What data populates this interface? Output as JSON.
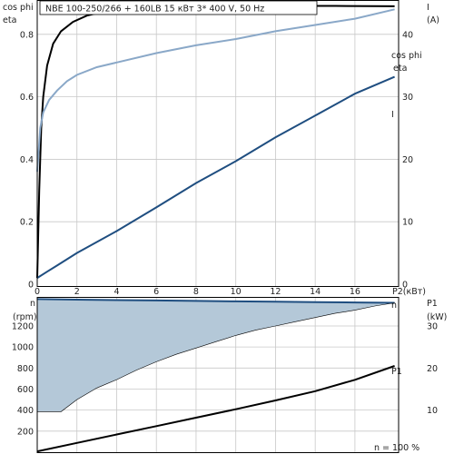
{
  "title": "NBE 100-250/266 + 160LB    15 кВт   3* 400 V, 50 Hz",
  "chart_data": [
    {
      "type": "line",
      "name": "top-panel",
      "xlabel": "P2(кВт)",
      "x_ticks": [
        0,
        2,
        4,
        6,
        8,
        10,
        12,
        14,
        16
      ],
      "xlim": [
        0,
        18.2
      ],
      "left_axis": {
        "labels": [
          "cos phi",
          "eta"
        ],
        "ticks": [
          0,
          0.2,
          0.4,
          0.6,
          0.8
        ],
        "ylim": [
          0,
          0.91
        ]
      },
      "right_axis": {
        "labels": [
          "I",
          "(A)"
        ],
        "ticks": [
          0,
          10,
          20,
          30,
          40
        ],
        "ylim": [
          0,
          45.5
        ]
      },
      "series": [
        {
          "name": "eta",
          "axis": "left",
          "color": "#000000",
          "x": [
            0,
            0.1,
            0.2,
            0.3,
            0.5,
            0.8,
            1.2,
            1.8,
            2.5,
            3.5,
            5,
            7,
            9,
            12,
            15,
            18
          ],
          "y": [
            0.02,
            0.3,
            0.5,
            0.6,
            0.7,
            0.77,
            0.81,
            0.84,
            0.86,
            0.875,
            0.885,
            0.889,
            0.89,
            0.891,
            0.891,
            0.89
          ]
        },
        {
          "name": "cos phi",
          "axis": "left",
          "color": "#8aa8c8",
          "x": [
            0,
            0.15,
            0.3,
            0.6,
            1,
            1.5,
            2,
            3,
            4,
            6,
            8,
            10,
            12,
            14,
            16,
            18
          ],
          "y": [
            0.36,
            0.5,
            0.55,
            0.59,
            0.62,
            0.65,
            0.67,
            0.695,
            0.71,
            0.74,
            0.765,
            0.785,
            0.81,
            0.83,
            0.85,
            0.88
          ]
        },
        {
          "name": "I",
          "axis": "right",
          "color": "#1f4e80",
          "x": [
            0,
            0.5,
            1,
            2,
            4,
            6,
            8,
            10,
            12,
            14,
            16,
            18
          ],
          "y": [
            1,
            2,
            3,
            5,
            8.5,
            12.3,
            16.2,
            19.7,
            23.5,
            27,
            30.5,
            33.2
          ]
        }
      ]
    },
    {
      "type": "area",
      "name": "bottom-panel",
      "xlim": [
        0,
        18.2
      ],
      "left_axis": {
        "labels": [
          "n",
          "(rpm)"
        ],
        "ticks": [
          200,
          400,
          600,
          800,
          1000,
          1200
        ],
        "ylim": [
          0,
          1450
        ]
      },
      "right_axis": {
        "labels": [
          "P1",
          "(kW)"
        ],
        "ticks": [
          10,
          20,
          30
        ],
        "ylim": [
          0,
          36.25
        ]
      },
      "annotation": "n   = 100 %",
      "series": [
        {
          "name": "n",
          "axis": "left",
          "color": "#1f4e80",
          "x": [
            0,
            2,
            4,
            6,
            8,
            10,
            12,
            14,
            16,
            18
          ],
          "y": [
            1455,
            1450,
            1446,
            1442,
            1438,
            1434,
            1430,
            1427,
            1423,
            1420
          ]
        },
        {
          "name": "n min",
          "axis": "left",
          "color": "#1f4e80",
          "x": [
            0,
            1.2,
            2,
            3,
            4,
            5,
            6,
            7,
            8,
            9,
            10,
            11,
            12,
            13,
            14,
            15,
            16,
            17,
            18
          ],
          "y": [
            385,
            385,
            500,
            610,
            690,
            780,
            860,
            930,
            990,
            1050,
            1110,
            1160,
            1200,
            1240,
            1280,
            1320,
            1350,
            1390,
            1420
          ]
        },
        {
          "name": "P1",
          "axis": "right",
          "color": "#000000",
          "x": [
            0,
            2,
            4,
            6,
            8,
            10,
            12,
            14,
            16,
            18
          ],
          "y": [
            0.2,
            2.2,
            4.2,
            6.2,
            8.2,
            10.2,
            12.3,
            14.5,
            17.2,
            20.5
          ]
        }
      ],
      "fill_color": "#b4c8d8"
    }
  ]
}
